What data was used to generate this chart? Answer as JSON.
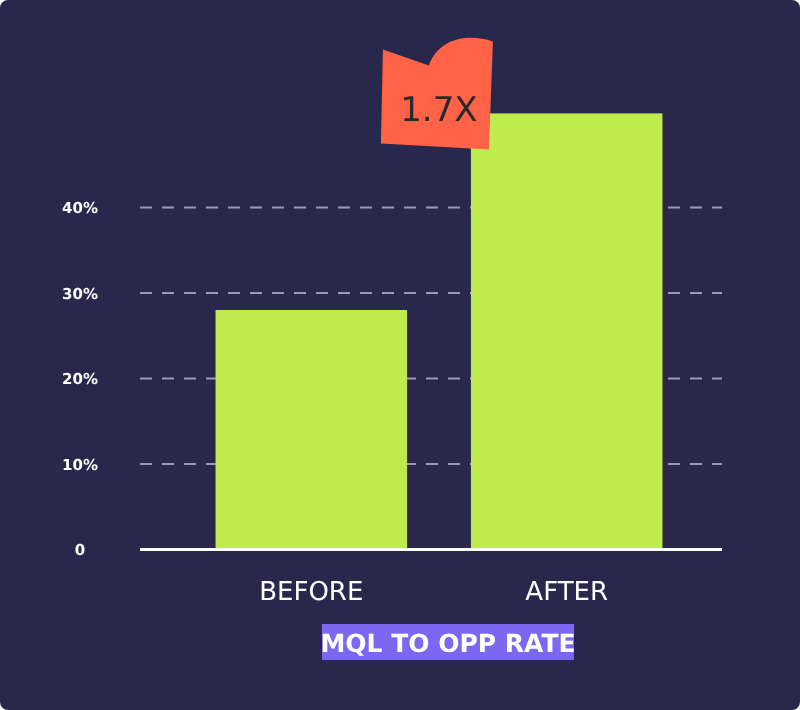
{
  "chart_data": {
    "type": "bar",
    "categories": [
      "BEFORE",
      "AFTER"
    ],
    "values": [
      28,
      51
    ],
    "color": "#bfeb4f",
    "xlabel": "MQL TO OPP RATE",
    "yticks": [
      0,
      {
        "value": 10,
        "label": "10%"
      },
      {
        "value": 20,
        "label": "20%"
      },
      {
        "value": 30,
        "label": "30%"
      },
      {
        "value": 40,
        "label": "40%"
      }
    ],
    "ylim": [
      0,
      51
    ],
    "grid": "y",
    "annotations": [
      {
        "text": "1.7X",
        "x": "AFTER",
        "y": 51
      }
    ]
  }
}
